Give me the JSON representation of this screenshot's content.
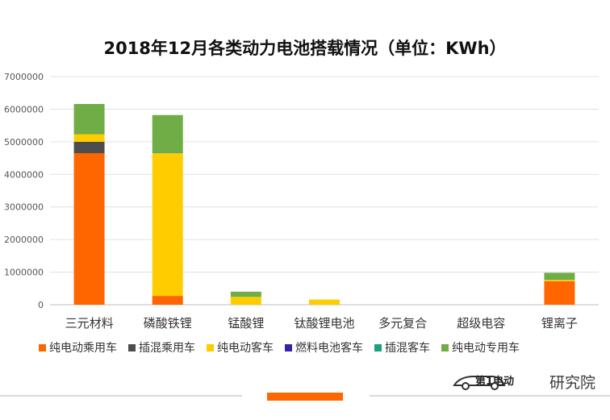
{
  "chart_data": {
    "type": "bar",
    "stacked": true,
    "title": "2018年12月各类动力电池搭载情况（单位：KWh）",
    "categories": [
      "三元材料",
      "磷酸铁锂",
      "锰酸锂",
      "钛酸锂电池",
      "多元复合",
      "超级电容",
      "锂离子"
    ],
    "ylim": [
      0,
      7000000
    ],
    "yticks": [
      "0",
      "1000000",
      "2000000",
      "3000000",
      "4000000",
      "5000000",
      "6000000",
      "7000000"
    ],
    "grid": true,
    "legend_position": "bottom",
    "series": [
      {
        "name": "纯电动乘用车",
        "color": "#ff6600",
        "values": [
          4650000,
          270000,
          0,
          0,
          0,
          0,
          720000
        ]
      },
      {
        "name": "插混乘用车",
        "color": "#4d4d4d",
        "values": [
          350000,
          0,
          0,
          0,
          0,
          0,
          0
        ]
      },
      {
        "name": "纯电动客车",
        "color": "#ffcc00",
        "values": [
          230000,
          4380000,
          240000,
          160000,
          0,
          0,
          40000
        ]
      },
      {
        "name": "燃料电池客车",
        "color": "#3b1fa8",
        "values": [
          0,
          0,
          0,
          0,
          0,
          0,
          0
        ]
      },
      {
        "name": "插混客车",
        "color": "#1aa17f",
        "values": [
          0,
          20000,
          0,
          0,
          0,
          0,
          0
        ]
      },
      {
        "name": "纯电动专用车",
        "color": "#70ad47",
        "values": [
          930000,
          1150000,
          160000,
          0,
          0,
          0,
          220000
        ]
      }
    ]
  },
  "watermark": {
    "brand": "第1电动",
    "text": "研究院"
  }
}
